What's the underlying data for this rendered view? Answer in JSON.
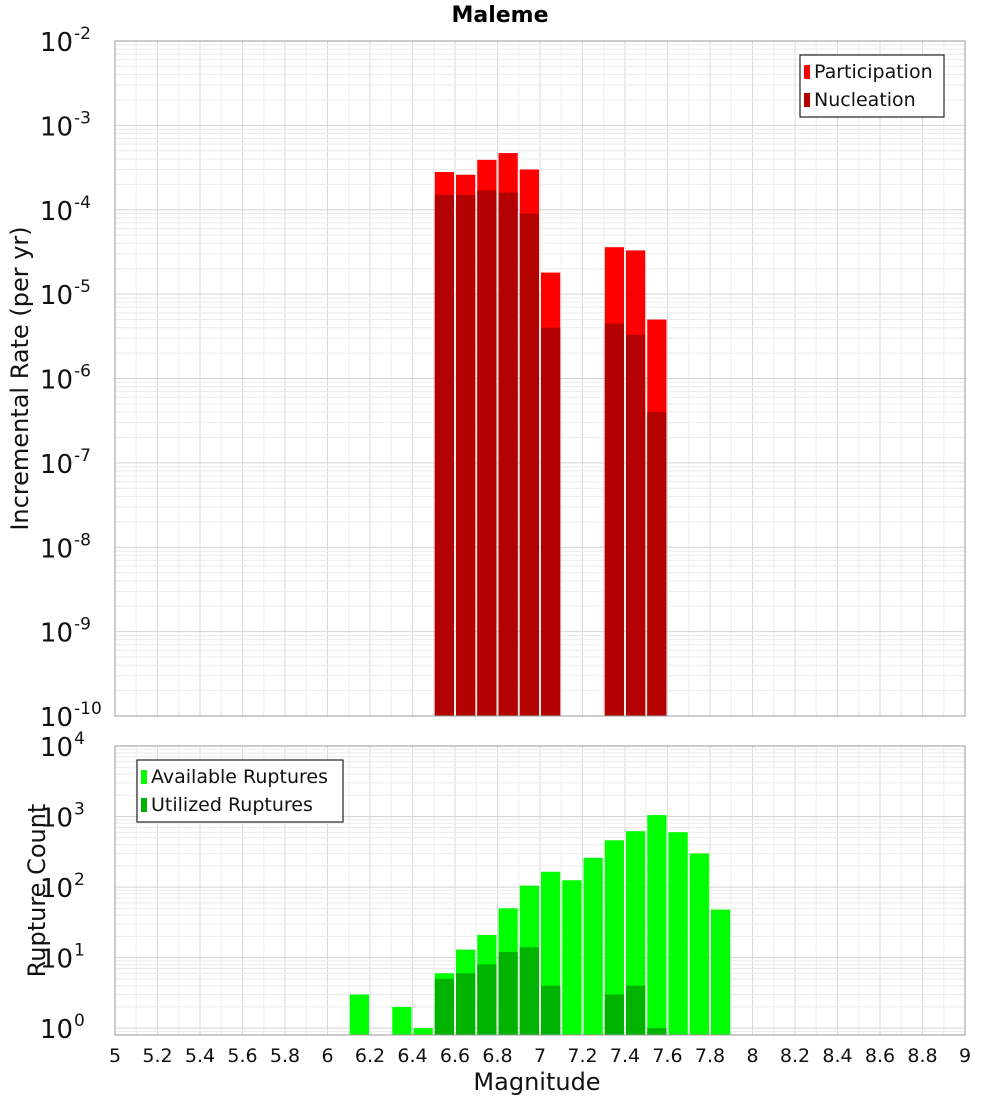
{
  "chart_data": [
    {
      "type": "bar",
      "title": "Maleme",
      "ylabel": "Incremental Rate (per yr)",
      "xlabel": "",
      "y_scale": "log",
      "ylim": [
        1e-10,
        0.01
      ],
      "xlim": [
        5,
        9
      ],
      "bin_width": 0.1,
      "grid": true,
      "legend_position": "top-right",
      "x": [
        6.55,
        6.65,
        6.75,
        6.85,
        6.95,
        7.05,
        7.35,
        7.45,
        7.55
      ],
      "series": [
        {
          "name": "Participation",
          "color": "#ff0000",
          "values": [
            0.00028,
            0.00026,
            0.00039,
            0.00047,
            0.0003,
            1.8e-05,
            3.6e-05,
            3.3e-05,
            5e-06
          ]
        },
        {
          "name": "Nucleation",
          "color": "#b30000",
          "values": [
            0.00015,
            0.00015,
            0.00017,
            0.00016,
            9e-05,
            4e-06,
            4.5e-06,
            3.3e-06,
            4e-07
          ]
        }
      ],
      "y_ticks": [
        {
          "base": "10",
          "exp": "-2"
        },
        {
          "base": "10",
          "exp": "-3"
        },
        {
          "base": "10",
          "exp": "-4"
        },
        {
          "base": "10",
          "exp": "-5"
        },
        {
          "base": "10",
          "exp": "-6"
        },
        {
          "base": "10",
          "exp": "-7"
        },
        {
          "base": "10",
          "exp": "-8"
        },
        {
          "base": "10",
          "exp": "-9"
        },
        {
          "base": "10",
          "exp": "-10"
        }
      ]
    },
    {
      "type": "bar",
      "title": "",
      "ylabel": "Rupture Count",
      "xlabel": "Magnitude",
      "y_scale": "log",
      "ylim": [
        0.8,
        10000
      ],
      "xlim": [
        5,
        9
      ],
      "bin_width": 0.1,
      "grid": true,
      "legend_position": "top-left",
      "x": [
        6.15,
        6.35,
        6.45,
        6.55,
        6.65,
        6.75,
        6.85,
        6.95,
        7.05,
        7.15,
        7.25,
        7.35,
        7.45,
        7.55,
        7.65,
        7.75,
        7.85
      ],
      "series": [
        {
          "name": "Available Ruptures",
          "color": "#00ff00",
          "values": [
            3,
            2,
            1,
            6,
            13,
            21,
            50,
            105,
            165,
            125,
            260,
            460,
            620,
            1050,
            600,
            300,
            48
          ]
        },
        {
          "name": "Utilized Ruptures",
          "color": "#00b300",
          "values": [
            0,
            0,
            0,
            5,
            6,
            8,
            12,
            14,
            4,
            0,
            0,
            3,
            4,
            1,
            0,
            0,
            0
          ]
        }
      ],
      "y_ticks": [
        {
          "base": "10",
          "exp": "4"
        },
        {
          "base": "10",
          "exp": "3"
        },
        {
          "base": "10",
          "exp": "2"
        },
        {
          "base": "10",
          "exp": "1"
        },
        {
          "base": "10",
          "exp": "0"
        }
      ],
      "x_tick_labels": [
        "5",
        "5.2",
        "5.4",
        "5.6",
        "5.8",
        "6",
        "6.2",
        "6.4",
        "6.6",
        "6.8",
        "7",
        "7.2",
        "7.4",
        "7.6",
        "7.8",
        "8",
        "8.2",
        "8.4",
        "8.6",
        "8.8",
        "9"
      ]
    }
  ]
}
